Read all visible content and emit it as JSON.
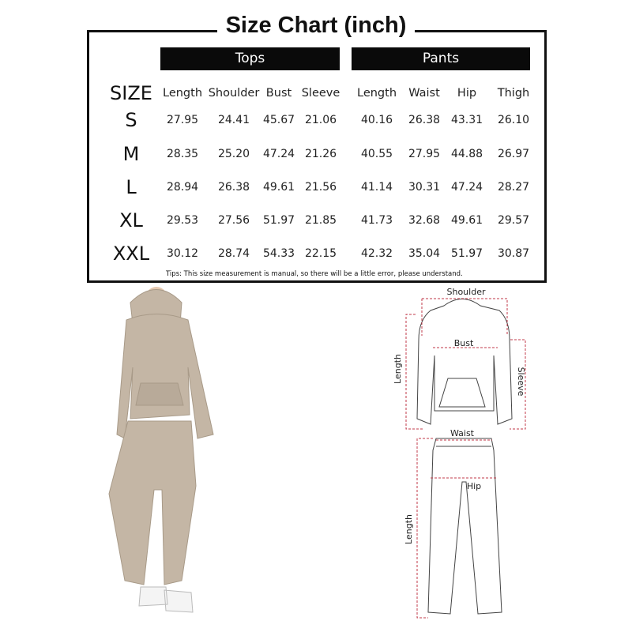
{
  "title": "Size Chart (inch)",
  "groups": {
    "tops": "Tops",
    "pants": "Pants"
  },
  "size_header": "SIZE",
  "columns": [
    "Length",
    "Shoulder",
    "Bust",
    "Sleeve",
    "Length",
    "Waist",
    "Hip",
    "Thigh"
  ],
  "rows": [
    {
      "size": "S",
      "values": [
        "27.95",
        "24.41",
        "45.67",
        "21.06",
        "40.16",
        "26.38",
        "43.31",
        "26.10"
      ]
    },
    {
      "size": "M",
      "values": [
        "28.35",
        "25.20",
        "47.24",
        "21.26",
        "40.55",
        "27.95",
        "44.88",
        "26.97"
      ]
    },
    {
      "size": "L",
      "values": [
        "28.94",
        "26.38",
        "49.61",
        "21.56",
        "41.14",
        "30.31",
        "47.24",
        "28.27"
      ]
    },
    {
      "size": "XL",
      "values": [
        "29.53",
        "27.56",
        "51.97",
        "21.85",
        "41.73",
        "32.68",
        "49.61",
        "29.57"
      ]
    },
    {
      "size": "XXL",
      "values": [
        "30.12",
        "28.74",
        "54.33",
        "22.15",
        "42.32",
        "35.04",
        "51.97",
        "30.87"
      ]
    }
  ],
  "tips": "Tips: This size measurement is manual, so there will be a little error, please understand.",
  "diagram": {
    "shoulder": "Shoulder",
    "bust": "Bust",
    "top_length": "Length",
    "sleeve": "Sleeve",
    "waist": "Waist",
    "hip": "Hip",
    "pant_length": "Length"
  },
  "colors": {
    "garment": "#c4b6a5",
    "measure_line": "#c0394a",
    "header_bg": "#0a0a0a"
  }
}
